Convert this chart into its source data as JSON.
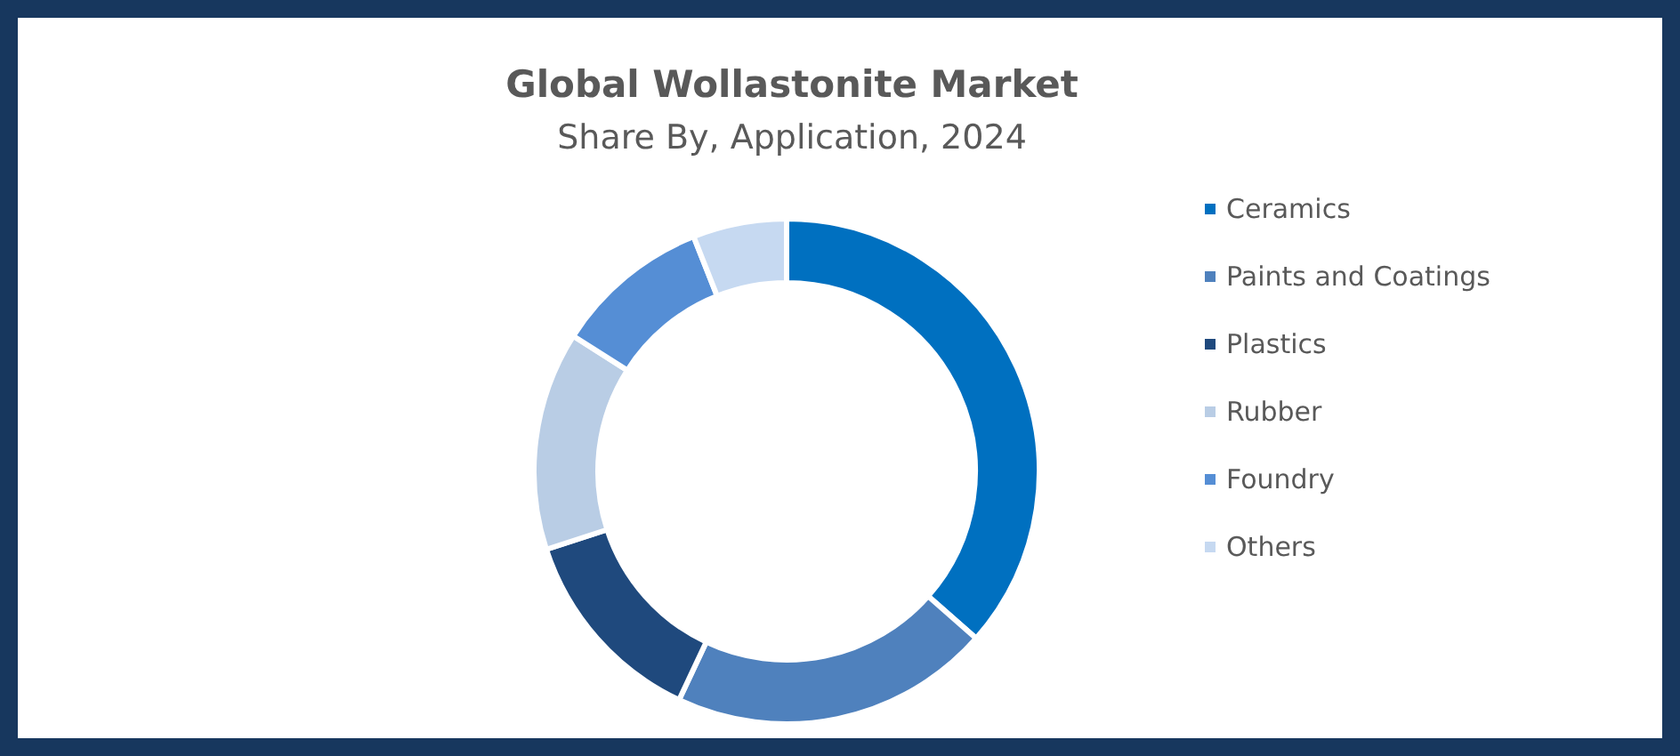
{
  "chart_data": {
    "type": "donut",
    "title": "Global Wollastonite Market",
    "subtitle": "Share By, Application, 2024",
    "categories": [
      "Ceramics",
      "Paints and Coatings",
      "Plastics",
      "Rubber",
      "Foundry",
      "Others"
    ],
    "values": [
      36.5,
      20.5,
      13,
      14,
      10,
      6
    ],
    "colors": [
      "#0070c0",
      "#4f81bd",
      "#1f497d",
      "#b9cde5",
      "#558ed5",
      "#c6d9f1"
    ],
    "legend": "right"
  }
}
